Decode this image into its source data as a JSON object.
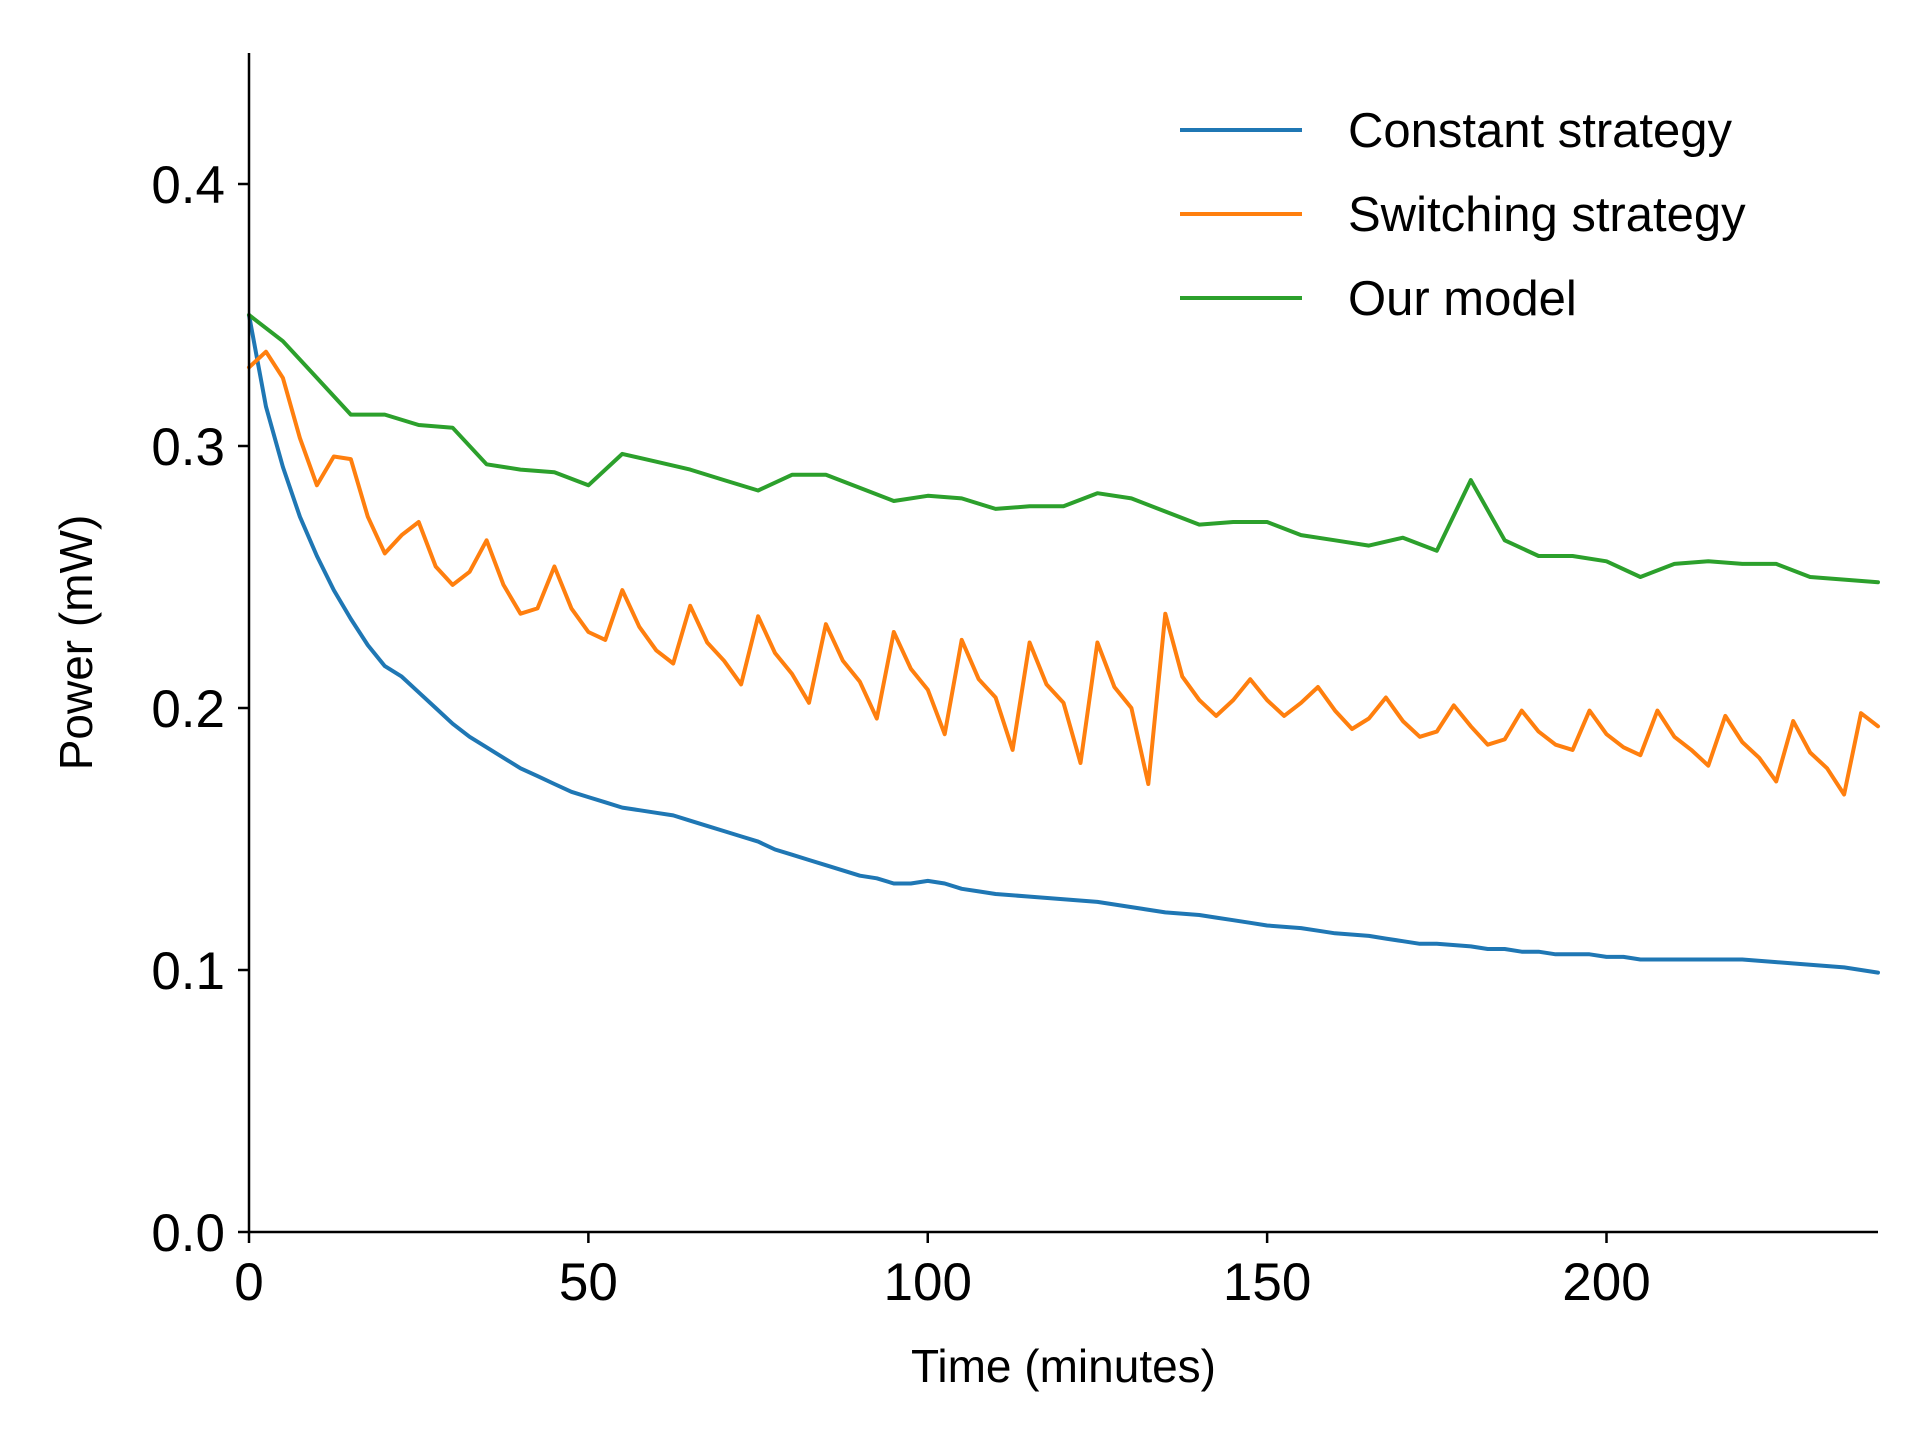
{
  "chart_data": {
    "type": "line",
    "title": "",
    "xlabel": "Time (minutes)",
    "ylabel": "Power (mW)",
    "xlim": [
      0,
      240
    ],
    "ylim": [
      0,
      0.45
    ],
    "xticks": [
      0,
      50,
      100,
      150,
      200
    ],
    "xtick_labels": [
      "0",
      "50",
      "100",
      "150",
      "200"
    ],
    "yticks": [
      0.0,
      0.1,
      0.2,
      0.3,
      0.4
    ],
    "ytick_labels": [
      "0.0",
      "0.1",
      "0.2",
      "0.3",
      "0.4"
    ],
    "grid": false,
    "legend_position": "top-right",
    "series": [
      {
        "name": "Constant strategy",
        "color": "#1f77b4",
        "x": [
          0,
          2.5,
          5,
          7.5,
          10,
          12.5,
          15,
          17.5,
          20,
          22.5,
          25,
          27.5,
          30,
          32.5,
          35,
          37.5,
          40,
          42.5,
          45,
          47.5,
          50,
          52.5,
          55,
          57.5,
          60,
          62.5,
          65,
          67.5,
          70,
          72.5,
          75,
          77.5,
          80,
          82.5,
          85,
          87.5,
          90,
          92.5,
          95,
          97.5,
          100,
          102.5,
          105,
          107.5,
          110,
          115,
          120,
          125,
          130,
          135,
          140,
          142.5,
          145,
          147.5,
          150,
          155,
          157.5,
          160,
          165,
          167.5,
          170,
          172.5,
          175,
          180,
          182.5,
          185,
          187.5,
          190,
          192.5,
          195,
          197.5,
          200,
          202.5,
          205,
          210,
          215,
          220,
          225,
          230,
          235,
          240
        ],
        "y": [
          0.35,
          0.315,
          0.292,
          0.273,
          0.258,
          0.245,
          0.234,
          0.224,
          0.216,
          0.212,
          0.206,
          0.2,
          0.194,
          0.189,
          0.185,
          0.181,
          0.177,
          0.174,
          0.171,
          0.168,
          0.166,
          0.164,
          0.162,
          0.161,
          0.16,
          0.159,
          0.157,
          0.155,
          0.153,
          0.151,
          0.149,
          0.146,
          0.144,
          0.142,
          0.14,
          0.138,
          0.136,
          0.135,
          0.133,
          0.133,
          0.134,
          0.133,
          0.131,
          0.13,
          0.129,
          0.128,
          0.127,
          0.126,
          0.124,
          0.122,
          0.121,
          0.12,
          0.119,
          0.118,
          0.117,
          0.116,
          0.115,
          0.114,
          0.113,
          0.112,
          0.111,
          0.11,
          0.11,
          0.109,
          0.108,
          0.108,
          0.107,
          0.107,
          0.106,
          0.106,
          0.106,
          0.105,
          0.105,
          0.104,
          0.104,
          0.104,
          0.104,
          0.103,
          0.102,
          0.101,
          0.099
        ]
      },
      {
        "name": "Switching strategy",
        "color": "#ff7f0e",
        "x": [
          0,
          2.5,
          5,
          7.5,
          10,
          12.5,
          15,
          17.5,
          20,
          22.5,
          25,
          27.5,
          30,
          32.5,
          35,
          37.5,
          40,
          42.5,
          45,
          47.5,
          50,
          52.5,
          55,
          57.5,
          60,
          62.5,
          65,
          67.5,
          70,
          72.5,
          75,
          77.5,
          80,
          82.5,
          85,
          87.5,
          90,
          92.5,
          95,
          97.5,
          100,
          102.5,
          105,
          107.5,
          110,
          112.5,
          115,
          117.5,
          120,
          122.5,
          125,
          127.5,
          130,
          132.5,
          135,
          137.5,
          140,
          142.5,
          145,
          147.5,
          150,
          152.5,
          155,
          157.5,
          160,
          162.5,
          165,
          167.5,
          170,
          172.5,
          175,
          177.5,
          180,
          182.5,
          185,
          187.5,
          190,
          192.5,
          195,
          197.5,
          200,
          202.5,
          205,
          207.5,
          210,
          212.5,
          215,
          217.5,
          220,
          222.5,
          225,
          227.5,
          230,
          232.5,
          235,
          237.5,
          240
        ],
        "y": [
          0.33,
          0.336,
          0.326,
          0.303,
          0.285,
          0.296,
          0.295,
          0.273,
          0.259,
          0.266,
          0.271,
          0.254,
          0.247,
          0.252,
          0.264,
          0.247,
          0.236,
          0.238,
          0.254,
          0.238,
          0.229,
          0.226,
          0.245,
          0.231,
          0.222,
          0.217,
          0.239,
          0.225,
          0.218,
          0.209,
          0.235,
          0.221,
          0.213,
          0.202,
          0.232,
          0.218,
          0.21,
          0.196,
          0.229,
          0.215,
          0.207,
          0.19,
          0.226,
          0.211,
          0.204,
          0.184,
          0.225,
          0.209,
          0.202,
          0.179,
          0.225,
          0.208,
          0.2,
          0.171,
          0.236,
          0.212,
          0.203,
          0.197,
          0.203,
          0.211,
          0.203,
          0.197,
          0.202,
          0.208,
          0.199,
          0.192,
          0.196,
          0.204,
          0.195,
          0.189,
          0.191,
          0.201,
          0.193,
          0.186,
          0.188,
          0.199,
          0.191,
          0.186,
          0.184,
          0.199,
          0.19,
          0.185,
          0.182,
          0.199,
          0.189,
          0.184,
          0.178,
          0.197,
          0.187,
          0.181,
          0.172,
          0.195,
          0.183,
          0.177,
          0.167,
          0.198,
          0.193
        ]
      },
      {
        "name": "Our model",
        "color": "#2ca02c",
        "x": [
          0,
          5,
          10,
          15,
          20,
          25,
          30,
          35,
          40,
          45,
          50,
          55,
          60,
          65,
          70,
          75,
          80,
          85,
          90,
          95,
          100,
          105,
          110,
          115,
          120,
          125,
          130,
          135,
          140,
          145,
          150,
          155,
          160,
          165,
          170,
          175,
          180,
          185,
          190,
          195,
          200,
          205,
          210,
          215,
          220,
          225,
          230,
          235,
          240
        ],
        "y": [
          0.35,
          0.34,
          0.326,
          0.312,
          0.312,
          0.308,
          0.307,
          0.293,
          0.291,
          0.29,
          0.285,
          0.297,
          0.294,
          0.291,
          0.287,
          0.283,
          0.289,
          0.289,
          0.284,
          0.279,
          0.281,
          0.28,
          0.276,
          0.277,
          0.277,
          0.282,
          0.28,
          0.275,
          0.27,
          0.271,
          0.271,
          0.266,
          0.264,
          0.262,
          0.265,
          0.26,
          0.287,
          0.264,
          0.258,
          0.258,
          0.256,
          0.25,
          0.255,
          0.256,
          0.255,
          0.255,
          0.25,
          0.249,
          0.248
        ]
      }
    ]
  }
}
